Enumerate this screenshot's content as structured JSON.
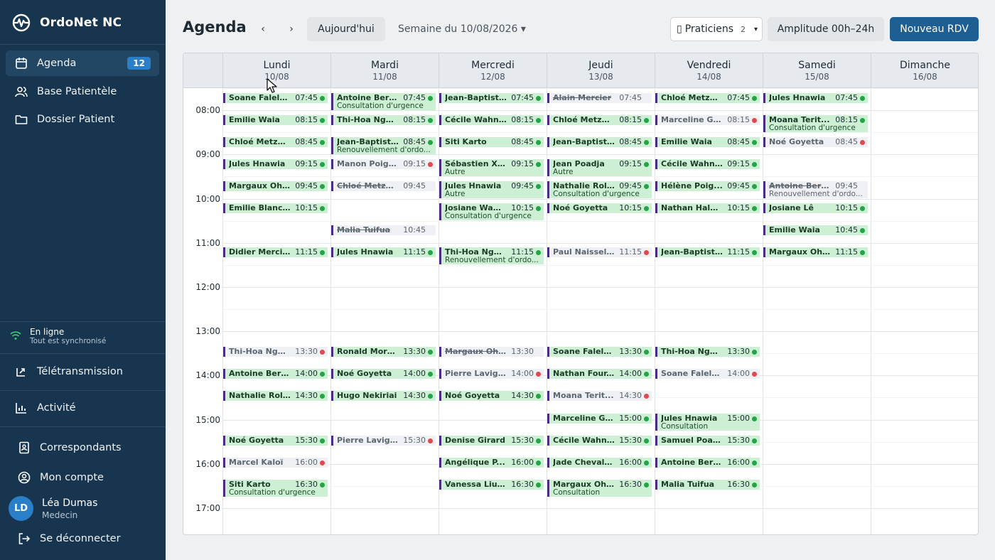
{
  "app": {
    "name": "OrdoNet NC"
  },
  "sidebar": {
    "nav": [
      {
        "label": "Agenda",
        "icon": "calendar-icon",
        "badge": "12",
        "active": true
      },
      {
        "label": "Base Patientèle",
        "icon": "users-icon"
      },
      {
        "label": "Dossier Patient",
        "icon": "folder-icon"
      }
    ],
    "status": {
      "line1": "En ligne",
      "line2": "Tout est synchronisé",
      "icon": "wifi-icon"
    },
    "teletrans": {
      "label": "Télétransmission",
      "icon": "upload-icon"
    },
    "activite": {
      "label": "Activité",
      "icon": "chart-icon"
    },
    "correspondants": {
      "label": "Correspondants",
      "icon": "contact-book-icon"
    },
    "compte": {
      "label": "Mon compte",
      "icon": "user-circle-icon"
    },
    "user": {
      "initials": "LD",
      "name": "Léa Dumas",
      "role": "Medecin"
    },
    "logout": {
      "label": "Se déconnecter",
      "icon": "logout-icon"
    }
  },
  "header": {
    "title": "Agenda",
    "prev": "‹",
    "next": "›",
    "today": "Aujourd'hui",
    "week": "Semaine du 10/08/2026 ▾",
    "praticiens": {
      "icon": "▯",
      "label": "Praticiens",
      "count": "2",
      "caret": "▾"
    },
    "amplitude": "Amplitude 00h–24h",
    "new": "Nouveau RDV"
  },
  "colors": {
    "ok": "#22a447",
    "alert": "#e0494d",
    "accent": "#4b2c85",
    "appt_bg": "#cdf0d5",
    "appt_dim": "#eef0f3"
  },
  "calendar": {
    "start_hour": 7.5,
    "days": [
      {
        "name": "Lundi",
        "date": "10/08"
      },
      {
        "name": "Mardi",
        "date": "11/08"
      },
      {
        "name": "Mercredi",
        "date": "12/08"
      },
      {
        "name": "Jeudi",
        "date": "13/08"
      },
      {
        "name": "Vendredi",
        "date": "14/08"
      },
      {
        "name": "Samedi",
        "date": "15/08"
      },
      {
        "name": "Dimanche",
        "date": "16/08"
      }
    ],
    "hours": [
      "08:00",
      "09:00",
      "10:00",
      "11:00",
      "12:00",
      "13:00",
      "14:00",
      "15:00",
      "16:00",
      "17:00"
    ],
    "appointments": [
      {
        "day": 0,
        "time": "07:45",
        "name": "Soane Falela...",
        "status": "ok"
      },
      {
        "day": 0,
        "time": "08:15",
        "name": "Emilie Waia",
        "status": "ok"
      },
      {
        "day": 0,
        "time": "08:45",
        "name": "Chloé Metzger",
        "status": "ok"
      },
      {
        "day": 0,
        "time": "09:15",
        "name": "Jules Hnawia",
        "status": "ok"
      },
      {
        "day": 0,
        "time": "09:45",
        "name": "Margaux Ohl...",
        "status": "ok"
      },
      {
        "day": 0,
        "time": "10:15",
        "name": "Emilie Blanc...",
        "status": "ok"
      },
      {
        "day": 0,
        "time": "11:15",
        "name": "Didier Mercier",
        "status": "ok"
      },
      {
        "day": 0,
        "time": "13:30",
        "name": "Thi-Hoa Ngu...",
        "status": "alert",
        "dim": true
      },
      {
        "day": 0,
        "time": "14:00",
        "name": "Antoine Berg...",
        "status": "ok"
      },
      {
        "day": 0,
        "time": "14:30",
        "name": "Nathalie Roll...",
        "status": "ok"
      },
      {
        "day": 0,
        "time": "15:30",
        "name": "Noé Goyetta",
        "status": "ok"
      },
      {
        "day": 0,
        "time": "16:00",
        "name": "Marcel Kaloï",
        "status": "alert",
        "dim": true
      },
      {
        "day": 0,
        "time": "16:30",
        "name": "Siti Karto",
        "status": "ok",
        "sub": "Consultation d'urgence"
      },
      {
        "day": 1,
        "time": "07:45",
        "name": "Antoine Berg...",
        "status": "ok",
        "sub": "Consultation d'urgence"
      },
      {
        "day": 1,
        "time": "08:15",
        "name": "Thi-Hoa Ngu...",
        "status": "ok"
      },
      {
        "day": 1,
        "time": "08:45",
        "name": "Jean-Baptist...",
        "status": "ok",
        "sub": "Renouvellement d'ordo..."
      },
      {
        "day": 1,
        "time": "09:15",
        "name": "Manon Poigo...",
        "status": "alert",
        "dim": true
      },
      {
        "day": 1,
        "time": "09:45",
        "name": "Chloé Metzger",
        "status": "none",
        "dim": true,
        "strike": true
      },
      {
        "day": 1,
        "time": "10:45",
        "name": "Malia Tuifua",
        "status": "none",
        "dim": true,
        "strike": true
      },
      {
        "day": 1,
        "time": "11:15",
        "name": "Jules Hnawia",
        "status": "ok"
      },
      {
        "day": 1,
        "time": "13:30",
        "name": "Ronald More...",
        "status": "ok"
      },
      {
        "day": 1,
        "time": "14:00",
        "name": "Noé Goyetta",
        "status": "ok"
      },
      {
        "day": 1,
        "time": "14:30",
        "name": "Hugo Nekiriai",
        "status": "ok"
      },
      {
        "day": 1,
        "time": "15:30",
        "name": "Pierre Lavigne",
        "status": "alert",
        "dim": true
      },
      {
        "day": 2,
        "time": "07:45",
        "name": "Jean-Baptist...",
        "status": "ok"
      },
      {
        "day": 2,
        "time": "08:15",
        "name": "Cécile Wahn...",
        "status": "ok"
      },
      {
        "day": 2,
        "time": "08:45",
        "name": "Siti Karto",
        "status": "ok"
      },
      {
        "day": 2,
        "time": "09:15",
        "name": "Sébastien Xo...",
        "status": "ok",
        "sub": "Autre"
      },
      {
        "day": 2,
        "time": "09:45",
        "name": "Jules Hnawia",
        "status": "ok",
        "sub": "Autre"
      },
      {
        "day": 2,
        "time": "10:15",
        "name": "Josiane Wam...",
        "status": "ok",
        "sub": "Consultation d'urgence"
      },
      {
        "day": 2,
        "time": "11:15",
        "name": "Thi-Hoa Ngu...",
        "status": "ok",
        "sub": "Renouvellement d'ordo..."
      },
      {
        "day": 2,
        "time": "13:30",
        "name": "Margaux Ohlen",
        "status": "none",
        "dim": true,
        "strike": true
      },
      {
        "day": 2,
        "time": "14:00",
        "name": "Pierre Lavigne",
        "status": "alert",
        "dim": true
      },
      {
        "day": 2,
        "time": "14:30",
        "name": "Noé Goyetta",
        "status": "ok"
      },
      {
        "day": 2,
        "time": "15:30",
        "name": "Denise Girard",
        "status": "ok"
      },
      {
        "day": 2,
        "time": "16:00",
        "name": "Angélique P...",
        "status": "ok"
      },
      {
        "day": 2,
        "time": "16:30",
        "name": "Vanessa Liuf...",
        "status": "ok"
      },
      {
        "day": 3,
        "time": "07:45",
        "name": "Alain Mercier",
        "status": "none",
        "dim": true,
        "strike": true
      },
      {
        "day": 3,
        "time": "08:15",
        "name": "Chloé Metzger",
        "status": "ok"
      },
      {
        "day": 3,
        "time": "08:45",
        "name": "Jean-Baptist...",
        "status": "ok"
      },
      {
        "day": 3,
        "time": "09:15",
        "name": "Jean Poadja",
        "status": "ok",
        "sub": "Autre"
      },
      {
        "day": 3,
        "time": "09:45",
        "name": "Nathalie Roll...",
        "status": "ok",
        "sub": "Consultation d'urgence"
      },
      {
        "day": 3,
        "time": "10:15",
        "name": "Noé Goyetta",
        "status": "ok"
      },
      {
        "day": 3,
        "time": "11:15",
        "name": "Paul Naisseli...",
        "status": "alert",
        "dim": true
      },
      {
        "day": 3,
        "time": "13:30",
        "name": "Soane Falela...",
        "status": "ok"
      },
      {
        "day": 3,
        "time": "14:00",
        "name": "Nathan Four...",
        "status": "ok"
      },
      {
        "day": 3,
        "time": "14:30",
        "name": "Moana Terit...",
        "status": "alert",
        "dim": true
      },
      {
        "day": 3,
        "time": "15:00",
        "name": "Marceline Go...",
        "status": "ok"
      },
      {
        "day": 3,
        "time": "15:30",
        "name": "Cécile Wahn...",
        "status": "ok"
      },
      {
        "day": 3,
        "time": "16:00",
        "name": "Jade Chevalier",
        "status": "ok"
      },
      {
        "day": 3,
        "time": "16:30",
        "name": "Margaux Ohl...",
        "status": "ok",
        "sub": "Consultation"
      },
      {
        "day": 4,
        "time": "07:45",
        "name": "Chloé Metzger",
        "status": "ok"
      },
      {
        "day": 4,
        "time": "08:15",
        "name": "Marceline Go...",
        "status": "alert",
        "dim": true
      },
      {
        "day": 4,
        "time": "08:45",
        "name": "Emilie Waia",
        "status": "ok"
      },
      {
        "day": 4,
        "time": "09:15",
        "name": "Cécile Wahn...",
        "status": "ok"
      },
      {
        "day": 4,
        "time": "09:45",
        "name": "Hélène Poig...",
        "status": "ok"
      },
      {
        "day": 4,
        "time": "10:15",
        "name": "Nathan Hala...",
        "status": "ok"
      },
      {
        "day": 4,
        "time": "11:15",
        "name": "Jean-Baptist...",
        "status": "ok"
      },
      {
        "day": 4,
        "time": "13:30",
        "name": "Thi-Hoa Ngu...",
        "status": "ok"
      },
      {
        "day": 4,
        "time": "14:00",
        "name": "Soane Falela...",
        "status": "alert",
        "dim": true
      },
      {
        "day": 4,
        "time": "15:00",
        "name": "Jules Hnawia",
        "status": "ok",
        "sub": "Consultation"
      },
      {
        "day": 4,
        "time": "15:30",
        "name": "Samuel Poadja",
        "status": "ok"
      },
      {
        "day": 4,
        "time": "16:00",
        "name": "Antoine Berg...",
        "status": "ok"
      },
      {
        "day": 4,
        "time": "16:30",
        "name": "Malia Tuifua",
        "status": "ok"
      },
      {
        "day": 5,
        "time": "07:45",
        "name": "Jules Hnawia",
        "status": "ok"
      },
      {
        "day": 5,
        "time": "08:15",
        "name": "Moana Terit...",
        "status": "ok",
        "sub": "Consultation d'urgence"
      },
      {
        "day": 5,
        "time": "08:45",
        "name": "Noé Goyetta",
        "status": "alert",
        "dim": true
      },
      {
        "day": 5,
        "time": "09:45",
        "name": "Antoine Berger",
        "status": "none",
        "dim": true,
        "strike": true,
        "sub": "Renouvellement d'ordo..."
      },
      {
        "day": 5,
        "time": "10:15",
        "name": "Josiane Lê",
        "status": "ok"
      },
      {
        "day": 5,
        "time": "10:45",
        "name": "Emilie Waia",
        "status": "ok"
      },
      {
        "day": 5,
        "time": "11:15",
        "name": "Margaux Ohl...",
        "status": "ok"
      }
    ]
  }
}
